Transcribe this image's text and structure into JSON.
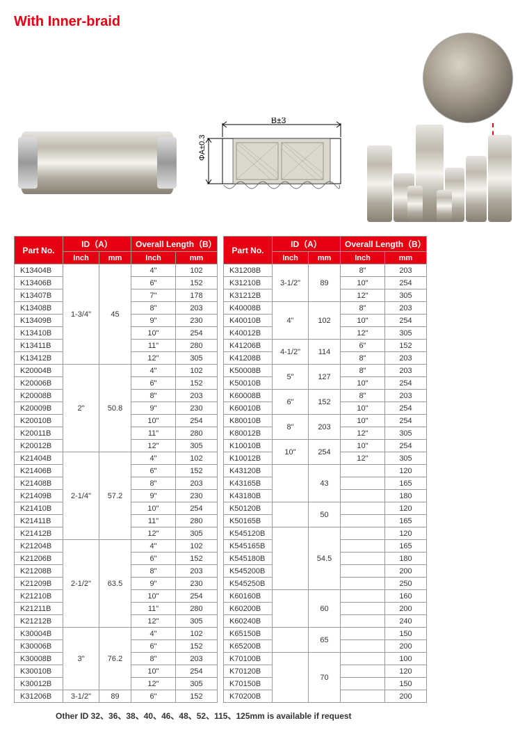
{
  "title": "With Inner-braid",
  "diagram_labels": {
    "top": "B±3",
    "left": "ΦA±0.3"
  },
  "table_headers": {
    "part_no": "Part No.",
    "id_a": "ID（A）",
    "overall_b": "Overall Length（B）",
    "inch": "Inch",
    "mm": "mm"
  },
  "col_widths": {
    "pn": 70,
    "id_inch": 52,
    "id_mm": 46,
    "ob_inch": 64,
    "ob_mm": 60
  },
  "left_groups": [
    {
      "id_inch": "1-3/4\"",
      "id_mm": "45",
      "rows": [
        {
          "pn": "K13404B",
          "oin": "4\"",
          "omm": "102"
        },
        {
          "pn": "K13406B",
          "oin": "6\"",
          "omm": "152"
        },
        {
          "pn": "K13407B",
          "oin": "7\"",
          "omm": "178"
        },
        {
          "pn": "K13408B",
          "oin": "8\"",
          "omm": "203"
        },
        {
          "pn": "K13409B",
          "oin": "9\"",
          "omm": "230"
        },
        {
          "pn": "K13410B",
          "oin": "10\"",
          "omm": "254"
        },
        {
          "pn": "K13411B",
          "oin": "11\"",
          "omm": "280"
        },
        {
          "pn": "K13412B",
          "oin": "12\"",
          "omm": "305"
        }
      ]
    },
    {
      "id_inch": "2\"",
      "id_mm": "50.8",
      "rows": [
        {
          "pn": "K20004B",
          "oin": "4\"",
          "omm": "102"
        },
        {
          "pn": "K20006B",
          "oin": "6\"",
          "omm": "152"
        },
        {
          "pn": "K20008B",
          "oin": "8\"",
          "omm": "203"
        },
        {
          "pn": "K20009B",
          "oin": "9\"",
          "omm": "230"
        },
        {
          "pn": "K20010B",
          "oin": "10\"",
          "omm": "254"
        },
        {
          "pn": "K20011B",
          "oin": "11\"",
          "omm": "280"
        },
        {
          "pn": "K20012B",
          "oin": "12\"",
          "omm": "305"
        }
      ]
    },
    {
      "id_inch": "2-1/4\"",
      "id_mm": "57.2",
      "rows": [
        {
          "pn": "K21404B",
          "oin": "4\"",
          "omm": "102"
        },
        {
          "pn": "K21406B",
          "oin": "6\"",
          "omm": "152"
        },
        {
          "pn": "K21408B",
          "oin": "8\"",
          "omm": "203"
        },
        {
          "pn": "K21409B",
          "oin": "9\"",
          "omm": "230"
        },
        {
          "pn": "K21410B",
          "oin": "10\"",
          "omm": "254"
        },
        {
          "pn": "K21411B",
          "oin": "11\"",
          "omm": "280"
        },
        {
          "pn": "K21412B",
          "oin": "12\"",
          "omm": "305"
        }
      ]
    },
    {
      "id_inch": "2-1/2\"",
      "id_mm": "63.5",
      "rows": [
        {
          "pn": "K21204B",
          "oin": "4\"",
          "omm": "102"
        },
        {
          "pn": "K21206B",
          "oin": "6\"",
          "omm": "152"
        },
        {
          "pn": "K21208B",
          "oin": "8\"",
          "omm": "203"
        },
        {
          "pn": "K21209B",
          "oin": "9\"",
          "omm": "230"
        },
        {
          "pn": "K21210B",
          "oin": "10\"",
          "omm": "254"
        },
        {
          "pn": "K21211B",
          "oin": "11\"",
          "omm": "280"
        },
        {
          "pn": "K21212B",
          "oin": "12\"",
          "omm": "305"
        }
      ]
    },
    {
      "id_inch": "3\"",
      "id_mm": "76.2",
      "rows": [
        {
          "pn": "K30004B",
          "oin": "4\"",
          "omm": "102"
        },
        {
          "pn": "K30006B",
          "oin": "6\"",
          "omm": "152"
        },
        {
          "pn": "K30008B",
          "oin": "8\"",
          "omm": "203"
        },
        {
          "pn": "K30010B",
          "oin": "10\"",
          "omm": "254"
        },
        {
          "pn": "K30012B",
          "oin": "12\"",
          "omm": "305"
        }
      ]
    },
    {
      "id_inch": "3-1/2\"",
      "id_mm": "89",
      "rows": [
        {
          "pn": "K31206B",
          "oin": "6\"",
          "omm": "152"
        }
      ]
    }
  ],
  "right_groups": [
    {
      "id_inch": "3-1/2\"",
      "id_mm": "89",
      "rows": [
        {
          "pn": "K31208B",
          "oin": "8\"",
          "omm": "203"
        },
        {
          "pn": "K31210B",
          "oin": "10\"",
          "omm": "254"
        },
        {
          "pn": "K31212B",
          "oin": "12\"",
          "omm": "305"
        }
      ]
    },
    {
      "id_inch": "4\"",
      "id_mm": "102",
      "rows": [
        {
          "pn": "K40008B",
          "oin": "8\"",
          "omm": "203"
        },
        {
          "pn": "K40010B",
          "oin": "10\"",
          "omm": "254"
        },
        {
          "pn": "K40012B",
          "oin": "12\"",
          "omm": "305"
        }
      ]
    },
    {
      "id_inch": "4-1/2\"",
      "id_mm": "114",
      "rows": [
        {
          "pn": "K41206B",
          "oin": "6\"",
          "omm": "152"
        },
        {
          "pn": "K41208B",
          "oin": "8\"",
          "omm": "203"
        }
      ]
    },
    {
      "id_inch": "5\"",
      "id_mm": "127",
      "rows": [
        {
          "pn": "K50008B",
          "oin": "8\"",
          "omm": "203"
        },
        {
          "pn": "K50010B",
          "oin": "10\"",
          "omm": "254"
        }
      ]
    },
    {
      "id_inch": "6\"",
      "id_mm": "152",
      "rows": [
        {
          "pn": "K60008B",
          "oin": "8\"",
          "omm": "203"
        },
        {
          "pn": "K60010B",
          "oin": "10\"",
          "omm": "254"
        }
      ]
    },
    {
      "id_inch": "8\"",
      "id_mm": "203",
      "rows": [
        {
          "pn": "K80010B",
          "oin": "10\"",
          "omm": "254"
        },
        {
          "pn": "K80012B",
          "oin": "12\"",
          "omm": "305"
        }
      ]
    },
    {
      "id_inch": "10\"",
      "id_mm": "254",
      "rows": [
        {
          "pn": "K10010B",
          "oin": "10\"",
          "omm": "254"
        },
        {
          "pn": "K10012B",
          "oin": "12\"",
          "omm": "305"
        }
      ]
    },
    {
      "id_inch": "",
      "id_mm": "43",
      "rows": [
        {
          "pn": "K43120B",
          "oin": "",
          "omm": "120"
        },
        {
          "pn": "K43165B",
          "oin": "",
          "omm": "165"
        },
        {
          "pn": "K43180B",
          "oin": "",
          "omm": "180"
        }
      ]
    },
    {
      "id_inch": "",
      "id_mm": "50",
      "rows": [
        {
          "pn": "K50120B",
          "oin": "",
          "omm": "120"
        },
        {
          "pn": "K50165B",
          "oin": "",
          "omm": "165"
        }
      ]
    },
    {
      "id_inch": "",
      "id_mm": "54.5",
      "rows": [
        {
          "pn": "K545120B",
          "oin": "",
          "omm": "120"
        },
        {
          "pn": "K545165B",
          "oin": "",
          "omm": "165"
        },
        {
          "pn": "K545180B",
          "oin": "",
          "omm": "180"
        },
        {
          "pn": "K545200B",
          "oin": "",
          "omm": "200"
        },
        {
          "pn": "K545250B",
          "oin": "",
          "omm": "250"
        }
      ]
    },
    {
      "id_inch": "",
      "id_mm": "60",
      "rows": [
        {
          "pn": "K60160B",
          "oin": "",
          "omm": "160"
        },
        {
          "pn": "K60200B",
          "oin": "",
          "omm": "200"
        },
        {
          "pn": "K60240B",
          "oin": "",
          "omm": "240"
        }
      ]
    },
    {
      "id_inch": "",
      "id_mm": "65",
      "rows": [
        {
          "pn": "K65150B",
          "oin": "",
          "omm": "150"
        },
        {
          "pn": "K65200B",
          "oin": "",
          "omm": "200"
        }
      ]
    },
    {
      "id_inch": "",
      "id_mm": "70",
      "rows": [
        {
          "pn": "K70100B",
          "oin": "",
          "omm": "100"
        },
        {
          "pn": "K70120B",
          "oin": "",
          "omm": "120"
        },
        {
          "pn": "K70150B",
          "oin": "",
          "omm": "150"
        },
        {
          "pn": "K70200B",
          "oin": "",
          "omm": "200"
        }
      ]
    }
  ],
  "footer_note": "Other  ID 32、36、38、40、46、48、52、115、125mm is available if request"
}
